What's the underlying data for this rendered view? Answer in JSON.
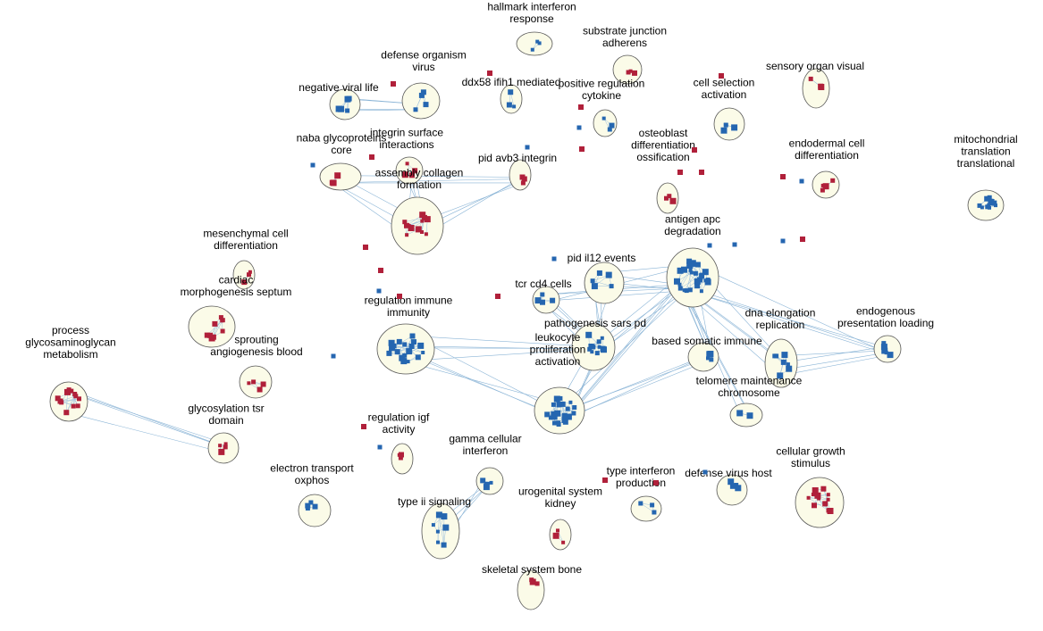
{
  "colors": {
    "blue": "#2566b0",
    "red": "#b0203a",
    "edge": "#8ab4d6",
    "cluster_fill": "#fbfbe8"
  },
  "clusters": [
    {
      "id": "hallmark",
      "label": [
        "hallmark interferon",
        "response"
      ],
      "color": "blue"
    },
    {
      "id": "substrate",
      "label": [
        "substrate junction",
        "adherens"
      ],
      "color": "red"
    },
    {
      "id": "sensory",
      "label": [
        "sensory organ visual"
      ],
      "color": "red"
    },
    {
      "id": "defense-org",
      "label": [
        "defense organism",
        "virus"
      ],
      "color": "blue"
    },
    {
      "id": "negviral",
      "label": [
        "negative viral life"
      ],
      "color": "blue"
    },
    {
      "id": "ddx58",
      "label": [
        "ddx58 ifih1 mediated"
      ],
      "color": "blue"
    },
    {
      "id": "posreg",
      "label": [
        "positive regulation",
        "cytokine"
      ],
      "color": "blue"
    },
    {
      "id": "cellsel",
      "label": [
        "cell selection",
        "activation"
      ],
      "color": "blue"
    },
    {
      "id": "naba",
      "label": [
        "naba glycoproteins",
        "core"
      ],
      "color": "red"
    },
    {
      "id": "integrin",
      "label": [
        "integrin surface",
        "interactions"
      ],
      "color": "red"
    },
    {
      "id": "pidavb3",
      "label": [
        "pid avb3 integrin"
      ],
      "color": "red"
    },
    {
      "id": "osteo",
      "label": [
        "osteoblast",
        "differentiation",
        "ossification"
      ],
      "color": "red"
    },
    {
      "id": "endoderm",
      "label": [
        "endodermal cell",
        "differentiation"
      ],
      "color": "red"
    },
    {
      "id": "mito",
      "label": [
        "mitochondrial",
        "translation",
        "translational"
      ],
      "color": "blue"
    },
    {
      "id": "collagen",
      "label": [
        "assembly collagen",
        "formation"
      ],
      "color": "red"
    },
    {
      "id": "mesench",
      "label": [
        "mesenchymal cell",
        "differentiation"
      ],
      "color": "red"
    },
    {
      "id": "antigen",
      "label": [
        "antigen apc",
        "degradation"
      ],
      "color": "blue"
    },
    {
      "id": "pidil12",
      "label": [
        "pid il12 events"
      ],
      "color": "blue"
    },
    {
      "id": "tcr",
      "label": [
        "tcr cd4 cells"
      ],
      "color": "blue"
    },
    {
      "id": "cardiac",
      "label": [
        "cardiac",
        "morphogenesis septum"
      ],
      "color": "red"
    },
    {
      "id": "regimm",
      "label": [
        "regulation immune",
        "immunity"
      ],
      "color": "blue"
    },
    {
      "id": "pathsars",
      "label": [
        "pathogenesis sars pd"
      ],
      "color": "blue"
    },
    {
      "id": "dnaelong",
      "label": [
        "dna elongation",
        "replication"
      ],
      "color": "blue"
    },
    {
      "id": "endopres",
      "label": [
        "endogenous",
        "presentation loading"
      ],
      "color": "blue"
    },
    {
      "id": "somatic",
      "label": [
        "based somatic immune"
      ],
      "color": "blue"
    },
    {
      "id": "sprouting",
      "label": [
        "sprouting",
        "angiogenesis blood"
      ],
      "color": "red"
    },
    {
      "id": "process",
      "label": [
        "process",
        "glycosaminoglycan",
        "metabolism"
      ],
      "color": "red"
    },
    {
      "id": "leuko",
      "label": [
        "leukocyte",
        "proliferation",
        "activation"
      ],
      "color": "blue"
    },
    {
      "id": "telomere",
      "label": [
        "telomere maintenance",
        "chromosome"
      ],
      "color": "blue"
    },
    {
      "id": "glycotsr",
      "label": [
        "glycosylation tsr",
        "domain"
      ],
      "color": "red"
    },
    {
      "id": "regigf",
      "label": [
        "regulation igf",
        "activity"
      ],
      "color": "red"
    },
    {
      "id": "gammacell",
      "label": [
        "gamma cellular",
        "interferon"
      ],
      "color": "blue"
    },
    {
      "id": "electron",
      "label": [
        "electron transport",
        "oxphos"
      ],
      "color": "blue"
    },
    {
      "id": "typeii",
      "label": [
        "type ii signaling"
      ],
      "color": "blue"
    },
    {
      "id": "urogenital",
      "label": [
        "urogenital system",
        "kidney"
      ],
      "color": "red"
    },
    {
      "id": "typeifn",
      "label": [
        "type interferon",
        "production"
      ],
      "color": "blue"
    },
    {
      "id": "defvirus",
      "label": [
        "defense virus host"
      ],
      "color": "blue"
    },
    {
      "id": "cellgrowth",
      "label": [
        "cellular growth",
        "stimulus"
      ],
      "color": "red"
    },
    {
      "id": "skeletal",
      "label": [
        "skeletal system bone"
      ],
      "color": "red"
    }
  ],
  "edges": [
    [
      "negviral",
      "defense-org"
    ],
    [
      "naba",
      "collagen"
    ],
    [
      "integrin",
      "collagen"
    ],
    [
      "pidavb3",
      "collagen"
    ],
    [
      "pidavb3",
      "naba"
    ],
    [
      "antigen",
      "pathsars"
    ],
    [
      "antigen",
      "dnaelong"
    ],
    [
      "antigen",
      "endopres"
    ],
    [
      "antigen",
      "pidil12"
    ],
    [
      "antigen",
      "tcr"
    ],
    [
      "antigen",
      "somatic"
    ],
    [
      "antigen",
      "leuko"
    ],
    [
      "antigen",
      "telomere"
    ],
    [
      "pidil12",
      "pathsars"
    ],
    [
      "tcr",
      "pathsars"
    ],
    [
      "pathsars",
      "leuko"
    ],
    [
      "regimm",
      "leuko"
    ],
    [
      "regimm",
      "pathsars"
    ],
    [
      "somatic",
      "leuko"
    ],
    [
      "process",
      "glycotsr"
    ],
    [
      "gammacell",
      "typeii"
    ],
    [
      "dnaelong",
      "endopres"
    ]
  ]
}
